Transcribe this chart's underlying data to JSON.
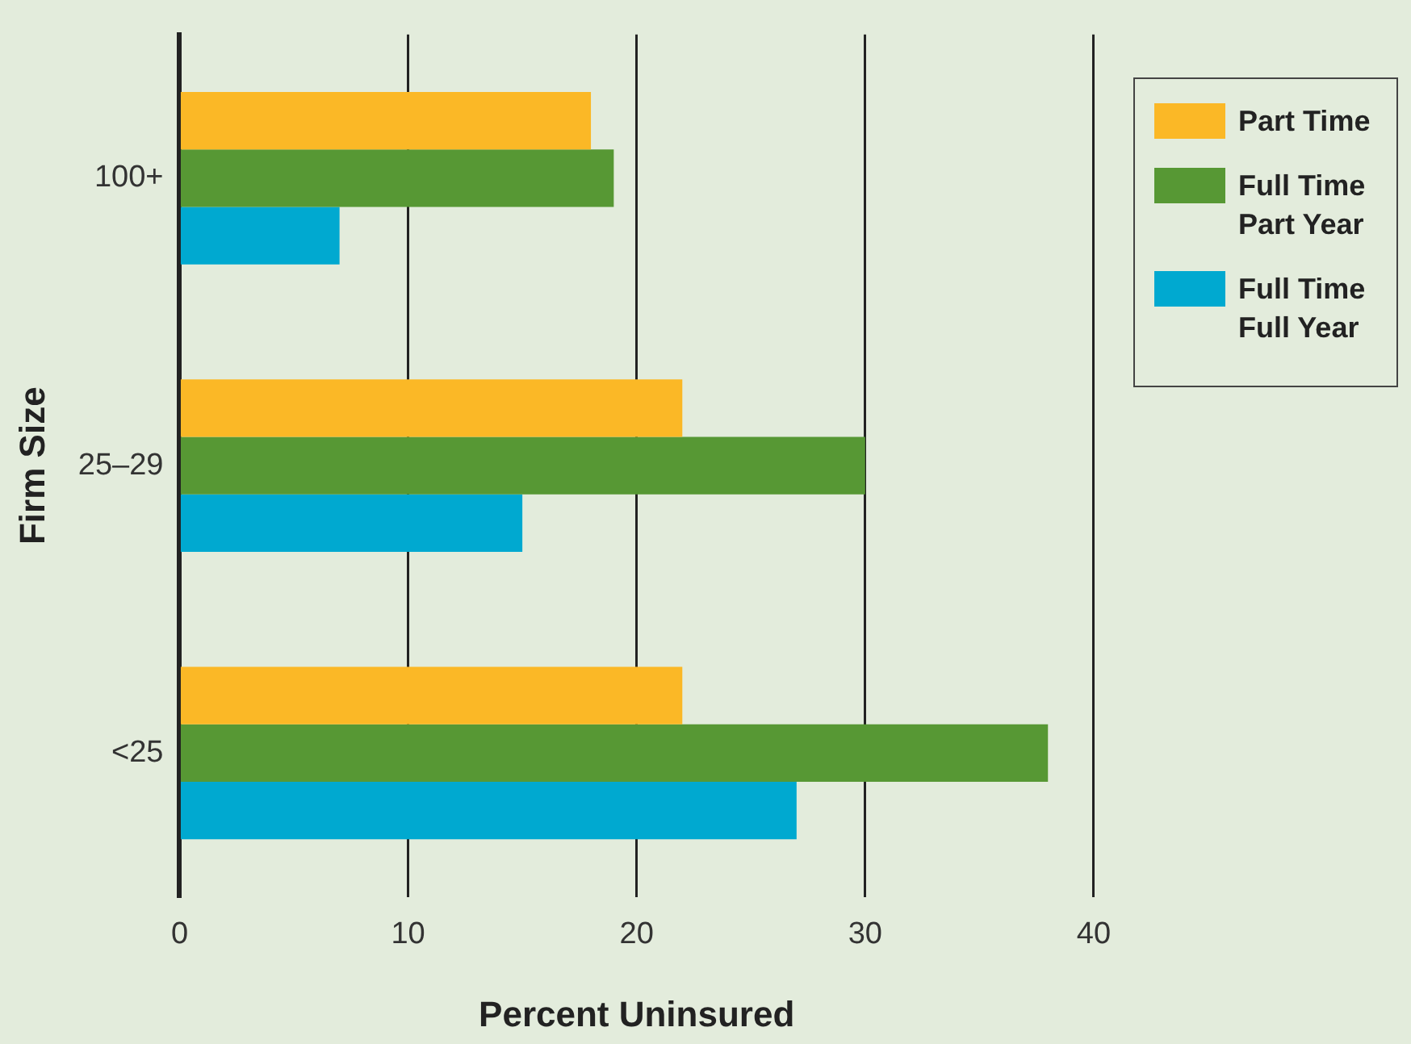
{
  "chart_data": {
    "type": "bar",
    "orientation": "horizontal",
    "xlabel": "Percent Uninsured",
    "ylabel": "Firm Size",
    "categories": [
      "100+",
      "25–29",
      "<25"
    ],
    "series": [
      {
        "name": "Part Time",
        "color": "#fbb826",
        "values": [
          18,
          22,
          22
        ]
      },
      {
        "name": "Full Time Part Year",
        "color": "#579834",
        "values": [
          19,
          30,
          38
        ]
      },
      {
        "name": "Full Time Full Year",
        "color": "#00a9d0",
        "values": [
          7,
          15,
          27
        ]
      }
    ],
    "xlim": [
      0,
      40
    ],
    "xticks": [
      0,
      10,
      20,
      30,
      40
    ],
    "grid": "x",
    "legend": "right"
  }
}
